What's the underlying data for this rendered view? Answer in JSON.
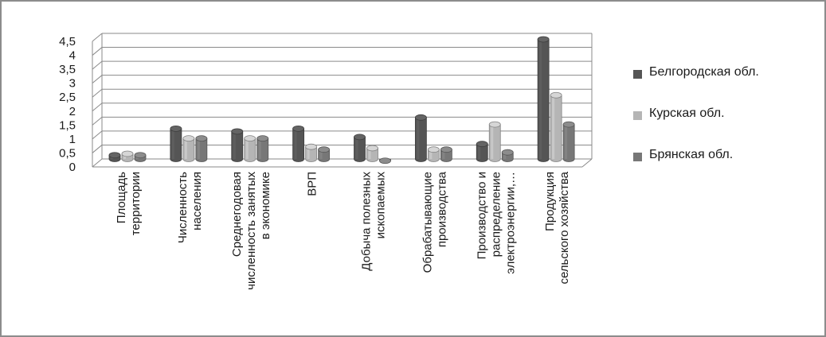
{
  "chart_data": {
    "type": "bar",
    "title": "",
    "xlabel": "",
    "ylabel": "",
    "ylim": [
      0,
      4.5
    ],
    "yticks": [
      "0",
      "0,5",
      "1",
      "1,5",
      "2",
      "2,5",
      "3",
      "3,5",
      "4",
      "4,5"
    ],
    "grid": true,
    "legend_position": "right",
    "three_d": true,
    "categories": [
      [
        "Площадь",
        "территории"
      ],
      [
        "Численность",
        "населения"
      ],
      [
        "Среднегодовая",
        "численность занятых",
        "в экономике"
      ],
      [
        "ВРП"
      ],
      [
        "Добыча полезных",
        "ископаемых"
      ],
      [
        "Обрабатывающие",
        "производства"
      ],
      [
        "Производство и",
        "распределение",
        "электроэнергии,…"
      ],
      [
        "Продукция",
        "сельского хозяйства"
      ]
    ],
    "series": [
      {
        "name": "Белгородская обл.",
        "color": "#555555",
        "values": [
          0.25,
          1.2,
          1.1,
          1.2,
          0.9,
          1.6,
          0.65,
          4.4
        ]
      },
      {
        "name": "Курская обл.",
        "color": "#b5b5b5",
        "values": [
          0.3,
          0.85,
          0.85,
          0.55,
          0.5,
          0.45,
          1.35,
          2.4
        ]
      },
      {
        "name": "Брянская обл.",
        "color": "#777777",
        "values": [
          0.25,
          0.85,
          0.85,
          0.45,
          0.05,
          0.45,
          0.35,
          1.35
        ]
      }
    ]
  }
}
